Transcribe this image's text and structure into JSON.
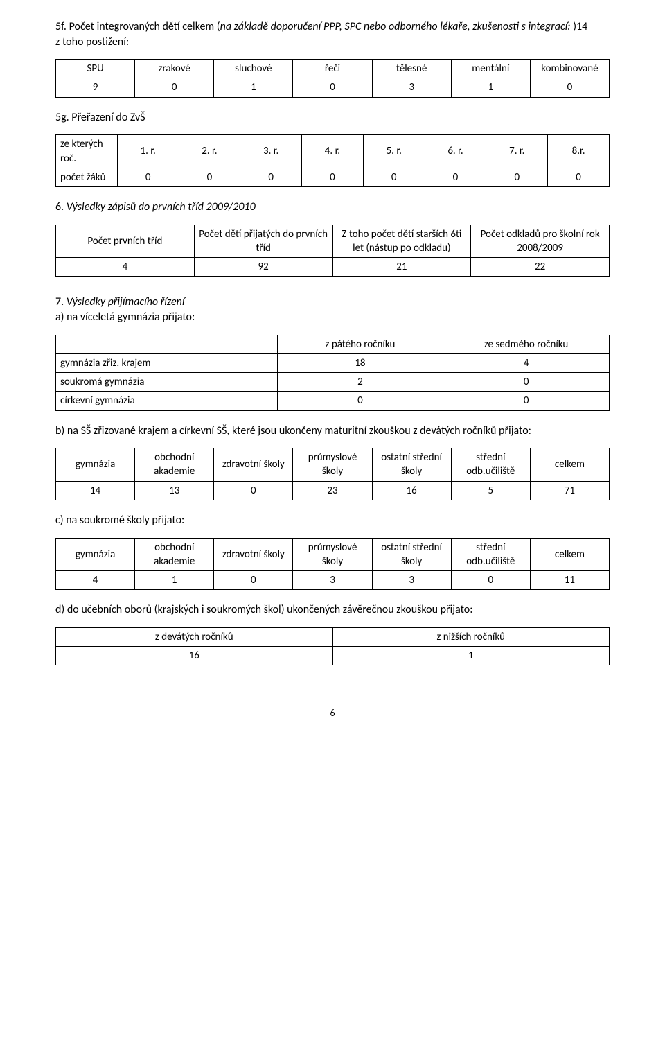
{
  "section5f": {
    "title_pre": "5f. Počet integrovaných dětí celkem (",
    "title_italic": "na základě doporučení PPP, SPC nebo odborného lékaře, zkušenosti s integrací: ",
    "title_post": ")14",
    "subtitle": " z toho postižení:",
    "headers": [
      "SPU",
      "zrakové",
      "sluchové",
      "řeči",
      "tělesné",
      "mentální",
      "kombinované"
    ],
    "row": [
      "9",
      "0",
      "1",
      "0",
      "3",
      "1",
      "0"
    ]
  },
  "section5g": {
    "title": "5g. Přeřazení do ZvŠ",
    "row_label": "ze kterých roč.",
    "headers": [
      "1. r.",
      "2. r.",
      "3. r.",
      "4. r.",
      "5. r.",
      "6. r.",
      "7. r.",
      "8.r."
    ],
    "count_label": "počet žáků",
    "row": [
      "0",
      "0",
      "0",
      "0",
      "0",
      "0",
      "0",
      "0"
    ]
  },
  "section6": {
    "title_pre": "6. ",
    "title_italic": "Výsledky zápisů do prvních tříd 2009/2010",
    "headers": [
      "Počet prvních tříd",
      "Počet dětí přijatých do prvních tříd",
      "Z toho počet dětí starších 6ti let (nástup po odkladu)",
      "Počet odkladů pro školní rok 2008/2009"
    ],
    "row": [
      "4",
      "92",
      "21",
      "22"
    ]
  },
  "section7": {
    "title_pre": "7. ",
    "title_italic": "Výsledky přijímacího řízení",
    "sub_a": "a) na víceletá gymnázia přijato:",
    "col_headers": [
      "z pátého ročníku",
      "ze sedmého ročníku"
    ],
    "rows": [
      {
        "label": "gymnázia zřiz. krajem",
        "v1": "18",
        "v2": "4"
      },
      {
        "label": "soukromá gymnázia",
        "v1": "2",
        "v2": "0"
      },
      {
        "label": "církevní gymnázia",
        "v1": "0",
        "v2": "0"
      }
    ],
    "sub_b": "b) na SŠ zřizované krajem a církevní SŠ, které jsou ukončeny maturitní zkouškou z devátých ročníků přijato:",
    "b_headers": [
      "gymnázia",
      "obchodní akademie",
      "zdravotní školy",
      "průmyslové školy",
      "ostatní střední školy",
      "střední odb.učiliště",
      "celkem"
    ],
    "b_row": [
      "14",
      "13",
      "0",
      "23",
      "16",
      "5",
      "71"
    ],
    "sub_c": "c) na soukromé školy přijato:",
    "c_row": [
      "4",
      "1",
      "0",
      "3",
      "3",
      "0",
      "11"
    ],
    "sub_d": "d) do učebních oborů (krajských i soukromých škol) ukončených závěrečnou zkouškou přijato:",
    "d_headers": [
      "z devátých ročníků",
      "z nižších ročníků"
    ],
    "d_row": [
      "16",
      "1"
    ]
  },
  "page_number": "6"
}
